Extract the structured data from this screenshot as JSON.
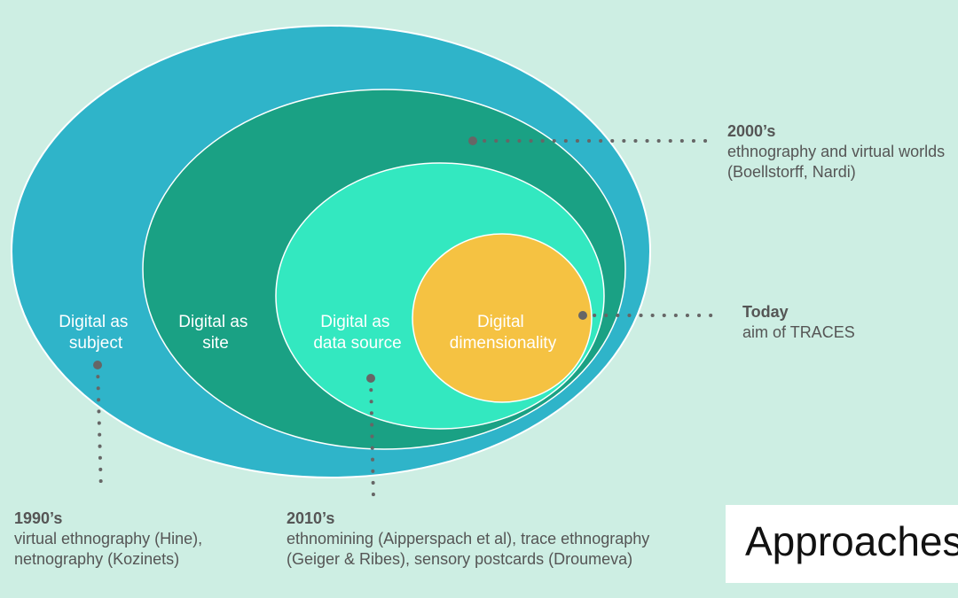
{
  "colors": {
    "background": "#cdeee3",
    "outer": "#2fb4c9",
    "second": "#1aa184",
    "third": "#33e8c0",
    "inner": "#f5c242",
    "dot": "#666666",
    "text": "#555555"
  },
  "diagram": {
    "ellipses": [
      {
        "label_line1": "Digital as",
        "label_line2": "subject"
      },
      {
        "label_line1": "Digital as",
        "label_line2": "site"
      },
      {
        "label_line1": "Digital as",
        "label_line2": "data source"
      },
      {
        "label_line1": "Digital",
        "label_line2": "dimensionality"
      }
    ]
  },
  "eras": [
    {
      "title": "2000’s",
      "line1": "ethnography and virtual worlds",
      "line2": "(Boellstorff, Nardi)"
    },
    {
      "title": "Today",
      "line1": "aim of TRACES",
      "line2": ""
    },
    {
      "title": "1990’s",
      "line1": "virtual ethnography (Hine),",
      "line2": "netnography (Kozinets)"
    },
    {
      "title": "2010’s",
      "line1": "ethnomining (Aipperspach et al), trace ethnography",
      "line2": "(Geiger & Ribes), sensory postcards (Droumeva)"
    }
  ],
  "slide_title": "Approaches"
}
